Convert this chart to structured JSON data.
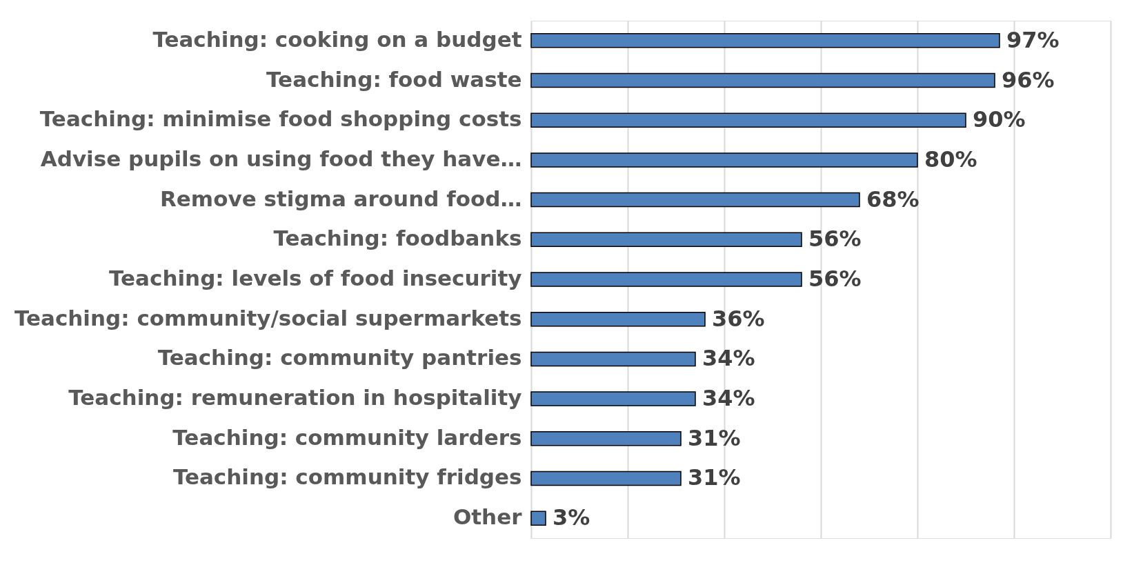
{
  "chart_data": {
    "type": "bar",
    "orientation": "horizontal",
    "categories": [
      "Teaching: cooking on a budget",
      "Teaching: food waste",
      "Teaching: minimise food shopping costs",
      "Advise pupils on using food they have…",
      "Remove stigma around food…",
      "Teaching: foodbanks",
      "Teaching: levels of food insecurity",
      "Teaching: community/social supermarkets",
      "Teaching: community pantries",
      "Teaching: remuneration in hospitality",
      "Teaching: community larders",
      "Teaching: community fridges",
      "Other"
    ],
    "values": [
      97,
      96,
      90,
      80,
      68,
      56,
      56,
      36,
      34,
      34,
      31,
      31,
      3
    ],
    "value_labels": [
      "97%",
      "96%",
      "90%",
      "80%",
      "68%",
      "56%",
      "56%",
      "36%",
      "34%",
      "34%",
      "31%",
      "31%",
      "3%"
    ],
    "color": "#4f81bd",
    "xlim": [
      0,
      120
    ],
    "xticks": [
      {
        "value": 0,
        "label": null
      },
      {
        "value": 20,
        "label": null
      },
      {
        "value": 40,
        "label": null
      },
      {
        "value": 60,
        "label": null
      },
      {
        "value": 80,
        "label": null
      },
      {
        "value": 100,
        "label": null
      },
      {
        "value": 120,
        "label": null
      }
    ],
    "grid": "x",
    "tick_labels": "y"
  }
}
